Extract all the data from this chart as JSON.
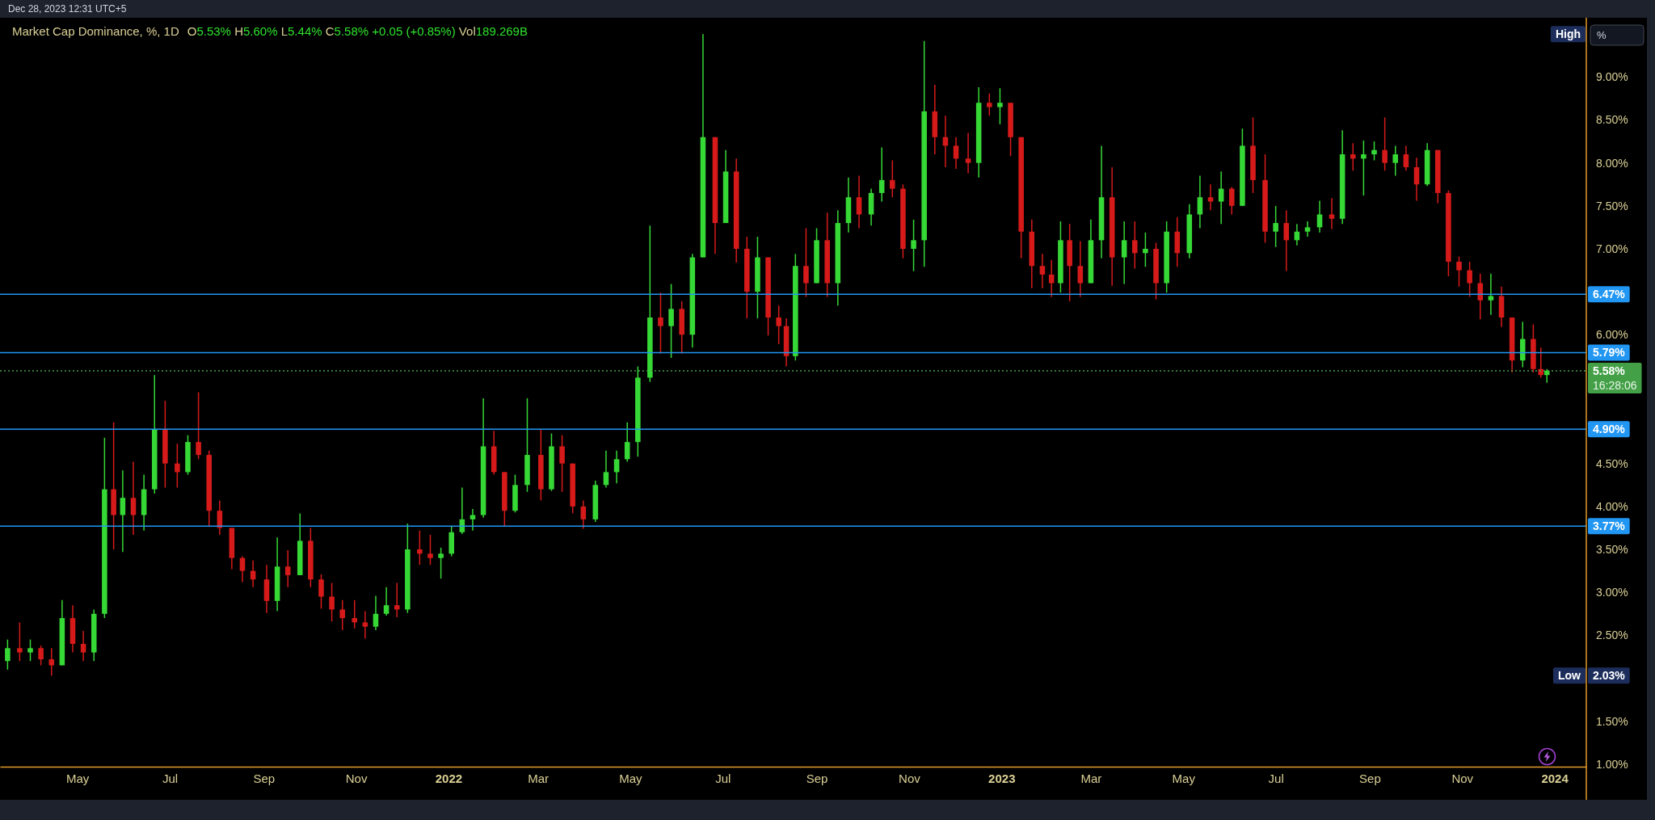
{
  "chart_data": {
    "type": "candlestick",
    "title": "Market Cap Dominance, %, 1D",
    "subtitle": "O5.53% H5.60% L5.44% C5.58% +0.05 (+0.85%) Vol189.269B",
    "x": [
      "2021-03-16",
      "2021-03-24",
      "2021-03-31",
      "2021-04-07",
      "2021-04-14",
      "2021-04-21",
      "2021-04-28",
      "2021-05-05",
      "2021-05-12",
      "2021-05-19",
      "2021-05-25",
      "2021-05-31",
      "2021-06-07",
      "2021-06-14",
      "2021-06-21",
      "2021-06-28",
      "2021-07-06",
      "2021-07-13",
      "2021-07-20",
      "2021-07-27",
      "2021-08-03",
      "2021-08-11",
      "2021-08-18",
      "2021-08-25",
      "2021-09-03",
      "2021-09-10",
      "2021-09-17",
      "2021-09-25",
      "2021-10-02",
      "2021-10-09",
      "2021-10-16",
      "2021-10-23",
      "2021-10-31",
      "2021-11-07",
      "2021-11-14",
      "2021-11-21",
      "2021-11-28",
      "2021-12-05",
      "2021-12-13",
      "2021-12-20",
      "2021-12-27",
      "2022-01-03",
      "2022-01-10",
      "2022-01-17",
      "2022-01-24",
      "2022-01-31",
      "2022-02-07",
      "2022-02-14",
      "2022-02-22",
      "2022-03-03",
      "2022-03-10",
      "2022-03-17",
      "2022-03-24",
      "2022-03-31",
      "2022-04-08",
      "2022-04-15",
      "2022-04-22",
      "2022-04-29",
      "2022-05-06",
      "2022-05-14",
      "2022-05-21",
      "2022-05-28",
      "2022-06-04",
      "2022-06-11",
      "2022-06-18",
      "2022-06-26",
      "2022-07-03",
      "2022-07-10",
      "2022-07-17",
      "2022-07-24",
      "2022-07-31",
      "2022-08-07",
      "2022-08-12",
      "2022-08-18",
      "2022-08-25",
      "2022-09-01",
      "2022-09-08",
      "2022-09-15",
      "2022-09-22",
      "2022-09-29",
      "2022-10-07",
      "2022-10-14",
      "2022-10-21",
      "2022-10-28",
      "2022-11-04",
      "2022-11-11",
      "2022-11-18",
      "2022-11-25",
      "2022-12-02",
      "2022-12-10",
      "2022-12-17",
      "2022-12-24",
      "2022-12-31",
      "2023-01-07",
      "2023-01-14",
      "2023-01-21",
      "2023-01-28",
      "2023-02-03",
      "2023-02-09",
      "2023-02-15",
      "2023-02-22",
      "2023-03-01",
      "2023-03-08",
      "2023-03-15",
      "2023-03-23",
      "2023-03-30",
      "2023-04-06",
      "2023-04-13",
      "2023-04-20",
      "2023-04-27",
      "2023-05-05",
      "2023-05-12",
      "2023-05-19",
      "2023-05-26",
      "2023-06-02",
      "2023-06-09",
      "2023-06-16",
      "2023-06-24",
      "2023-07-01",
      "2023-07-08",
      "2023-07-15",
      "2023-07-22",
      "2023-07-30",
      "2023-08-07",
      "2023-08-14",
      "2023-08-21",
      "2023-08-28",
      "2023-09-04",
      "2023-09-11",
      "2023-09-18",
      "2023-09-25",
      "2023-10-02",
      "2023-10-09",
      "2023-10-16",
      "2023-10-23",
      "2023-10-30",
      "2023-11-06",
      "2023-11-13",
      "2023-11-20",
      "2023-11-27",
      "2023-12-04",
      "2023-12-11",
      "2023-12-18",
      "2023-12-23",
      "2023-12-27"
    ],
    "ohlc": [
      [
        2.2,
        2.45,
        2.1,
        2.35
      ],
      [
        2.35,
        2.65,
        2.2,
        2.3
      ],
      [
        2.3,
        2.45,
        2.2,
        2.35
      ],
      [
        2.35,
        2.38,
        2.15,
        2.22
      ],
      [
        2.22,
        2.35,
        2.03,
        2.15
      ],
      [
        2.15,
        2.91,
        2.15,
        2.7
      ],
      [
        2.7,
        2.85,
        2.3,
        2.4
      ],
      [
        2.4,
        2.55,
        2.2,
        2.3
      ],
      [
        2.3,
        2.8,
        2.2,
        2.75
      ],
      [
        2.75,
        4.8,
        2.7,
        4.2
      ],
      [
        4.2,
        4.98,
        3.5,
        3.9
      ],
      [
        3.9,
        4.42,
        3.47,
        4.1
      ],
      [
        4.1,
        4.52,
        3.67,
        3.9
      ],
      [
        3.9,
        4.37,
        3.72,
        4.2
      ],
      [
        4.2,
        5.53,
        4.15,
        4.9
      ],
      [
        4.9,
        5.23,
        4.22,
        4.5
      ],
      [
        4.5,
        4.73,
        4.22,
        4.4
      ],
      [
        4.4,
        4.83,
        4.37,
        4.75
      ],
      [
        4.75,
        5.33,
        4.55,
        4.6
      ],
      [
        4.6,
        4.65,
        3.77,
        3.95
      ],
      [
        3.95,
        4.07,
        3.67,
        3.75
      ],
      [
        3.75,
        3.75,
        3.27,
        3.4
      ],
      [
        3.4,
        3.42,
        3.12,
        3.25
      ],
      [
        3.25,
        3.37,
        3.06,
        3.15
      ],
      [
        3.15,
        3.32,
        2.76,
        2.9
      ],
      [
        2.9,
        3.64,
        2.78,
        3.3
      ],
      [
        3.3,
        3.49,
        3.06,
        3.2
      ],
      [
        3.2,
        3.92,
        3.2,
        3.6
      ],
      [
        3.6,
        3.75,
        3.06,
        3.15
      ],
      [
        3.15,
        3.21,
        2.81,
        2.95
      ],
      [
        2.95,
        3.11,
        2.66,
        2.8
      ],
      [
        2.8,
        2.91,
        2.56,
        2.7
      ],
      [
        2.7,
        2.91,
        2.58,
        2.65
      ],
      [
        2.65,
        2.78,
        2.46,
        2.6
      ],
      [
        2.6,
        2.96,
        2.56,
        2.75
      ],
      [
        2.75,
        3.06,
        2.73,
        2.85
      ],
      [
        2.85,
        3.11,
        2.71,
        2.8
      ],
      [
        2.8,
        3.8,
        2.76,
        3.5
      ],
      [
        3.5,
        3.72,
        3.32,
        3.45
      ],
      [
        3.45,
        3.67,
        3.32,
        3.4
      ],
      [
        3.4,
        3.52,
        3.16,
        3.45
      ],
      [
        3.45,
        3.77,
        3.42,
        3.7
      ],
      [
        3.7,
        4.22,
        3.68,
        3.85
      ],
      [
        3.85,
        3.97,
        3.72,
        3.9
      ],
      [
        3.9,
        5.26,
        3.87,
        4.7
      ],
      [
        4.7,
        4.88,
        4.37,
        4.4
      ],
      [
        4.4,
        4.4,
        3.77,
        3.95
      ],
      [
        3.95,
        4.37,
        3.93,
        4.25
      ],
      [
        4.25,
        5.26,
        4.17,
        4.6
      ],
      [
        4.6,
        4.9,
        4.07,
        4.2
      ],
      [
        4.2,
        4.85,
        4.18,
        4.7
      ],
      [
        4.7,
        4.83,
        4.17,
        4.5
      ],
      [
        4.5,
        4.5,
        3.92,
        4.0
      ],
      [
        4.0,
        4.07,
        3.74,
        3.85
      ],
      [
        3.85,
        4.3,
        3.82,
        4.25
      ],
      [
        4.25,
        4.65,
        4.22,
        4.4
      ],
      [
        4.4,
        4.65,
        4.27,
        4.55
      ],
      [
        4.55,
        4.98,
        4.52,
        4.75
      ],
      [
        4.75,
        5.63,
        4.58,
        5.5
      ],
      [
        5.5,
        7.27,
        5.45,
        6.2
      ],
      [
        6.2,
        6.49,
        5.78,
        6.1
      ],
      [
        6.1,
        6.59,
        5.73,
        6.3
      ],
      [
        6.3,
        6.39,
        5.78,
        6.0
      ],
      [
        6.0,
        6.94,
        5.85,
        6.9
      ],
      [
        6.9,
        9.5,
        6.9,
        8.3
      ],
      [
        8.3,
        8.3,
        6.94,
        7.3
      ],
      [
        7.3,
        8.15,
        7.3,
        7.9
      ],
      [
        7.9,
        8.05,
        6.84,
        7.0
      ],
      [
        7.0,
        7.14,
        6.19,
        6.5
      ],
      [
        6.5,
        7.14,
        6.19,
        6.9
      ],
      [
        6.9,
        6.9,
        5.99,
        6.2
      ],
      [
        6.2,
        6.34,
        5.89,
        6.1
      ],
      [
        6.1,
        6.19,
        5.63,
        5.75
      ],
      [
        5.75,
        6.94,
        5.7,
        6.8
      ],
      [
        6.8,
        7.24,
        6.44,
        6.6
      ],
      [
        6.6,
        7.24,
        6.6,
        7.1
      ],
      [
        7.1,
        7.42,
        6.44,
        6.6
      ],
      [
        6.6,
        7.45,
        6.34,
        7.3
      ],
      [
        7.3,
        7.83,
        7.19,
        7.6
      ],
      [
        7.6,
        7.85,
        7.24,
        7.4
      ],
      [
        7.4,
        7.7,
        7.27,
        7.65
      ],
      [
        7.65,
        8.18,
        7.55,
        7.8
      ],
      [
        7.8,
        8.03,
        7.6,
        7.7
      ],
      [
        7.7,
        7.75,
        6.89,
        7.0
      ],
      [
        7.0,
        7.34,
        6.74,
        7.1
      ],
      [
        7.1,
        9.42,
        6.79,
        8.6
      ],
      [
        8.6,
        8.91,
        8.1,
        8.3
      ],
      [
        8.3,
        8.55,
        7.95,
        8.2
      ],
      [
        8.2,
        8.3,
        7.93,
        8.05
      ],
      [
        8.05,
        8.35,
        7.88,
        8.0
      ],
      [
        8.0,
        8.88,
        7.83,
        8.7
      ],
      [
        8.7,
        8.81,
        8.55,
        8.65
      ],
      [
        8.65,
        8.87,
        8.45,
        8.7
      ],
      [
        8.7,
        8.7,
        8.08,
        8.3
      ],
      [
        8.3,
        8.3,
        6.89,
        7.2
      ],
      [
        7.2,
        7.34,
        6.54,
        6.8
      ],
      [
        6.8,
        6.94,
        6.54,
        6.7
      ],
      [
        6.7,
        6.87,
        6.44,
        6.6
      ],
      [
        6.6,
        7.32,
        6.49,
        7.1
      ],
      [
        7.1,
        7.29,
        6.39,
        6.8
      ],
      [
        6.8,
        7.09,
        6.44,
        6.6
      ],
      [
        6.6,
        7.34,
        6.6,
        7.1
      ],
      [
        7.1,
        8.2,
        6.89,
        7.6
      ],
      [
        7.6,
        7.95,
        6.57,
        6.9
      ],
      [
        6.9,
        7.32,
        6.59,
        7.1
      ],
      [
        7.1,
        7.32,
        6.77,
        6.95
      ],
      [
        6.95,
        7.19,
        6.79,
        7.0
      ],
      [
        7.0,
        7.07,
        6.41,
        6.6
      ],
      [
        6.6,
        7.32,
        6.49,
        7.2
      ],
      [
        7.2,
        7.37,
        6.79,
        6.95
      ],
      [
        6.95,
        7.52,
        6.89,
        7.4
      ],
      [
        7.4,
        7.85,
        7.24,
        7.6
      ],
      [
        7.6,
        7.75,
        7.45,
        7.55
      ],
      [
        7.55,
        7.9,
        7.29,
        7.7
      ],
      [
        7.7,
        7.72,
        7.4,
        7.5
      ],
      [
        7.5,
        8.4,
        7.5,
        8.2
      ],
      [
        8.2,
        8.53,
        7.65,
        7.8
      ],
      [
        7.8,
        8.1,
        7.07,
        7.2
      ],
      [
        7.2,
        7.5,
        7.02,
        7.3
      ],
      [
        7.3,
        7.45,
        6.74,
        7.1
      ],
      [
        7.1,
        7.29,
        7.04,
        7.2
      ],
      [
        7.2,
        7.32,
        7.14,
        7.25
      ],
      [
        7.25,
        7.56,
        7.19,
        7.4
      ],
      [
        7.4,
        7.59,
        7.23,
        7.35
      ],
      [
        7.35,
        8.38,
        7.29,
        8.1
      ],
      [
        8.1,
        8.23,
        7.91,
        8.05
      ],
      [
        8.05,
        8.26,
        7.62,
        8.1
      ],
      [
        8.1,
        8.25,
        8.03,
        8.15
      ],
      [
        8.15,
        8.53,
        7.91,
        8.0
      ],
      [
        8.0,
        8.2,
        7.85,
        8.1
      ],
      [
        8.1,
        8.2,
        7.91,
        7.95
      ],
      [
        7.95,
        8.06,
        7.56,
        7.75
      ],
      [
        7.75,
        8.23,
        7.73,
        8.15
      ],
      [
        8.15,
        8.15,
        7.53,
        7.65
      ],
      [
        7.65,
        7.68,
        6.68,
        6.85
      ],
      [
        6.85,
        6.91,
        6.56,
        6.75
      ],
      [
        6.75,
        6.85,
        6.44,
        6.6
      ],
      [
        6.6,
        6.71,
        6.18,
        6.4
      ],
      [
        6.4,
        6.71,
        6.23,
        6.45
      ],
      [
        6.45,
        6.56,
        6.09,
        6.2
      ],
      [
        6.2,
        6.2,
        5.56,
        5.7
      ],
      [
        5.7,
        6.15,
        5.62,
        5.95
      ],
      [
        5.95,
        6.12,
        5.56,
        5.6
      ],
      [
        5.6,
        5.85,
        5.5,
        5.53
      ],
      [
        5.53,
        5.6,
        5.44,
        5.58
      ]
    ],
    "colors": [
      "#36d836",
      "#d61a1a",
      "#36d836",
      "#d61a1a",
      "#d61a1a",
      "#36d836",
      "#d61a1a",
      "#d61a1a",
      "#36d836",
      "#36d836",
      "#d61a1a",
      "#36d836",
      "#d61a1a",
      "#36d836",
      "#36d836",
      "#d61a1a",
      "#d61a1a",
      "#36d836",
      "#d61a1a",
      "#d61a1a",
      "#d61a1a",
      "#d61a1a",
      "#d61a1a",
      "#d61a1a",
      "#d61a1a",
      "#36d836",
      "#d61a1a",
      "#36d836",
      "#d61a1a",
      "#d61a1a",
      "#d61a1a",
      "#d61a1a",
      "#d61a1a",
      "#d61a1a",
      "#36d836",
      "#36d836",
      "#d61a1a",
      "#36d836",
      "#d61a1a",
      "#d61a1a",
      "#36d836",
      "#36d836",
      "#36d836",
      "#36d836",
      "#36d836",
      "#d61a1a",
      "#d61a1a",
      "#36d836",
      "#36d836",
      "#d61a1a",
      "#36d836",
      "#d61a1a",
      "#d61a1a",
      "#d61a1a",
      "#36d836",
      "#36d836",
      "#36d836",
      "#36d836",
      "#36d836",
      "#36d836",
      "#d61a1a",
      "#36d836",
      "#d61a1a",
      "#36d836",
      "#36d836",
      "#d61a1a",
      "#36d836",
      "#d61a1a",
      "#d61a1a",
      "#36d836",
      "#d61a1a",
      "#d61a1a",
      "#d61a1a",
      "#36d836",
      "#d61a1a",
      "#36d836",
      "#d61a1a",
      "#36d836",
      "#36d836",
      "#d61a1a",
      "#36d836",
      "#36d836",
      "#d61a1a",
      "#d61a1a",
      "#36d836",
      "#36d836",
      "#d61a1a",
      "#d61a1a",
      "#d61a1a",
      "#d61a1a",
      "#36d836",
      "#d61a1a",
      "#36d836",
      "#d61a1a",
      "#d61a1a",
      "#d61a1a",
      "#d61a1a",
      "#d61a1a",
      "#36d836",
      "#d61a1a",
      "#d61a1a",
      "#36d836",
      "#36d836",
      "#d61a1a",
      "#36d836",
      "#d61a1a",
      "#36d836",
      "#d61a1a",
      "#36d836",
      "#d61a1a",
      "#36d836",
      "#36d836",
      "#d61a1a",
      "#36d836",
      "#d61a1a",
      "#36d836",
      "#d61a1a",
      "#d61a1a",
      "#36d836",
      "#d61a1a",
      "#36d836",
      "#36d836",
      "#36d836",
      "#d61a1a",
      "#36d836",
      "#d61a1a",
      "#36d836",
      "#36d836",
      "#d61a1a",
      "#36d836",
      "#d61a1a",
      "#d61a1a",
      "#36d836",
      "#d61a1a",
      "#d61a1a",
      "#d61a1a",
      "#d61a1a",
      "#d61a1a",
      "#36d836",
      "#d61a1a",
      "#d61a1a",
      "#36d836",
      "#d61a1a",
      "#d61a1a",
      "#36d836"
    ],
    "xlim": [
      "2021-03-11",
      "2024-01-22"
    ],
    "xticks": [
      {
        "value": "2021-05-01",
        "label": "May"
      },
      {
        "value": "2021-07-01",
        "label": "Jul"
      },
      {
        "value": "2021-09-01",
        "label": "Sep"
      },
      {
        "value": "2021-11-01",
        "label": "Nov"
      },
      {
        "value": "2022-01-01",
        "label": "2022"
      },
      {
        "value": "2022-03-01",
        "label": "Mar"
      },
      {
        "value": "2022-05-01",
        "label": "May"
      },
      {
        "value": "2022-07-01",
        "label": "Jul"
      },
      {
        "value": "2022-09-01",
        "label": "Sep"
      },
      {
        "value": "2022-11-01",
        "label": "Nov"
      },
      {
        "value": "2023-01-01",
        "label": "2023"
      },
      {
        "value": "2023-03-01",
        "label": "Mar"
      },
      {
        "value": "2023-05-01",
        "label": "May"
      },
      {
        "value": "2023-07-01",
        "label": "Jul"
      },
      {
        "value": "2023-09-01",
        "label": "Sep"
      },
      {
        "value": "2023-11-01",
        "label": "Nov"
      },
      {
        "value": "2024-01-01",
        "label": "2024"
      }
    ],
    "ylim": [
      0.97,
      9.69
    ],
    "yticks": [
      {
        "value": 1,
        "label": "1.00%"
      },
      {
        "value": 1.5,
        "label": "1.50%"
      },
      {
        "value": 2.5,
        "label": "2.50%"
      },
      {
        "value": 3,
        "label": "3.00%"
      },
      {
        "value": 3.5,
        "label": "3.50%"
      },
      {
        "value": 4,
        "label": "4.00%"
      },
      {
        "value": 4.5,
        "label": "4.50%"
      },
      {
        "value": 6,
        "label": "6.00%"
      },
      {
        "value": 7,
        "label": "7.00%"
      },
      {
        "value": 7.5,
        "label": "7.50%"
      },
      {
        "value": 8,
        "label": "8.00%"
      },
      {
        "value": 8.5,
        "label": "8.50%"
      },
      {
        "value": 9,
        "label": "9.00%"
      }
    ],
    "ref_lines": [
      {
        "axis": "y",
        "value": 6.47,
        "label": "6.47%",
        "color": "#2196f3"
      },
      {
        "axis": "y",
        "value": 5.79,
        "label": "5.79%",
        "color": "#2196f3"
      },
      {
        "axis": "y",
        "value": 4.9,
        "label": "4.90%",
        "color": "#2196f3"
      },
      {
        "axis": "y",
        "value": 3.77,
        "label": "3.77%",
        "color": "#2196f3"
      },
      {
        "axis": "y",
        "value": 5.58,
        "label": "5.58%",
        "color": "#43a047",
        "line_style": "dotted"
      }
    ],
    "annotations": [
      "Dec 28, 2023 12:31 UTC+5",
      "%",
      "2.03%",
      "16:28:06",
      {
        "text": "High",
        "y": 9.5
      },
      {
        "text": "Low",
        "y": 2.03
      }
    ]
  }
}
